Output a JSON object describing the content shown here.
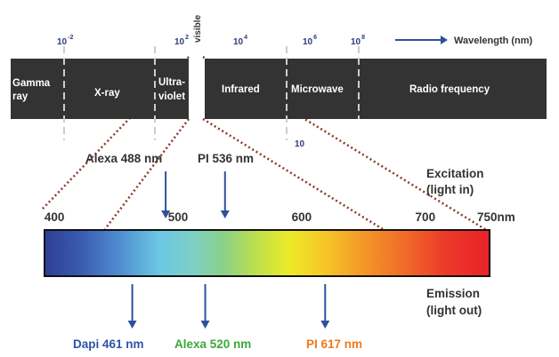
{
  "colors": {
    "band_bg": "#333333",
    "band_text": "#ffffff",
    "dash": "#cccccc",
    "arrow": "#2f4f9e",
    "guide": "#8a3a2a",
    "text_dark": "#333333",
    "dapi": "#2e52a8",
    "alexa520": "#3aa838",
    "pi617": "#ee7a1c"
  },
  "spectrum_band": {
    "regions": [
      "Gamma ray",
      "X-ray",
      "Ultra-violet",
      "Infrared",
      "Microwave",
      "Radio frequency"
    ],
    "gamma_line1": "Gamma",
    "gamma_line2": "ray",
    "xray": "X-ray",
    "uv_line1": "Ultra-",
    "uv_line2": "violet",
    "infrared": "Infrared",
    "microwave": "Microwave",
    "radio": "Radio frequency"
  },
  "wavelength_scale": {
    "base": "10",
    "exponents": [
      "-2",
      "2",
      "4",
      "6",
      "8"
    ],
    "lower_tick": "10",
    "visible_label": "visible",
    "legend_label": "Wavelength (nm)"
  },
  "excitation": {
    "markers": [
      {
        "label": "Alexa 488 nm",
        "value_nm": 488
      },
      {
        "label": "PI 536 nm",
        "value_nm": 536
      }
    ],
    "title_line1": "Excitation",
    "title_line2": "(light in)"
  },
  "visible_axis": {
    "min_nm": 390,
    "max_nm": 750,
    "ticks": [
      {
        "label": "400",
        "value_nm": 400
      },
      {
        "label": "500",
        "value_nm": 500
      },
      {
        "label": "600",
        "value_nm": 600
      },
      {
        "label": "700",
        "value_nm": 700
      },
      {
        "label": "750nm",
        "value_nm": 750
      }
    ]
  },
  "emission": {
    "markers": [
      {
        "label": "Dapi 461 nm",
        "value_nm": 461,
        "color": "#2e52a8"
      },
      {
        "label": "Alexa 520 nm",
        "value_nm": 520,
        "color": "#3aa838"
      },
      {
        "label": "PI 617 nm",
        "value_nm": 617,
        "color": "#ee7a1c"
      }
    ],
    "title_line1": "Emission",
    "title_line2": "(light out)"
  }
}
